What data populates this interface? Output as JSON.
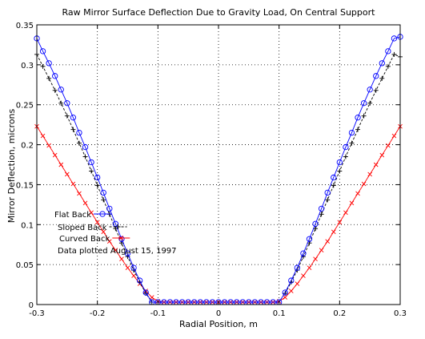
{
  "chart_data": {
    "type": "line",
    "title": "Raw Mirror Surface Deflection Due to Gravity Load, On Central Support",
    "xlabel": "Radial Position, m",
    "ylabel": "Mirror Deflection, microns",
    "xlim": [
      -0.3,
      0.3
    ],
    "ylim": [
      0,
      0.35
    ],
    "xticks": [
      -0.3,
      -0.2,
      -0.1,
      0,
      0.1,
      0.2,
      0.3
    ],
    "xtick_labels": [
      "-0.3",
      "-0.2",
      "-0.1",
      "0",
      "0.1",
      "0.2",
      "0.3"
    ],
    "yticks": [
      0,
      0.05,
      0.1,
      0.15,
      0.2,
      0.25,
      0.3,
      0.35
    ],
    "ytick_labels": [
      "0",
      "0.05",
      "0.1",
      "0.15",
      "0.2",
      "0.25",
      "0.3",
      "0.35"
    ],
    "grid": true,
    "legend_position": "left",
    "annotation": "Data plotted August 15, 1997",
    "series": [
      {
        "name": "Flat Back",
        "color": "#0000ff",
        "marker": "o",
        "points": [
          [
            -0.3,
            0.333
          ],
          [
            -0.29,
            0.317
          ],
          [
            -0.28,
            0.302
          ],
          [
            -0.27,
            0.286
          ],
          [
            -0.26,
            0.269
          ],
          [
            -0.25,
            0.252
          ],
          [
            -0.24,
            0.234
          ],
          [
            -0.23,
            0.215
          ],
          [
            -0.22,
            0.197
          ],
          [
            -0.21,
            0.178
          ],
          [
            -0.2,
            0.159
          ],
          [
            -0.19,
            0.14
          ],
          [
            -0.18,
            0.12
          ],
          [
            -0.17,
            0.101
          ],
          [
            -0.16,
            0.082
          ],
          [
            -0.15,
            0.064
          ],
          [
            -0.14,
            0.046
          ],
          [
            -0.13,
            0.03
          ],
          [
            -0.12,
            0.015
          ],
          [
            -0.11,
            0.003
          ],
          [
            -0.1,
            0.003
          ],
          [
            -0.09,
            0.003
          ],
          [
            -0.08,
            0.003
          ],
          [
            -0.07,
            0.003
          ],
          [
            -0.06,
            0.003
          ],
          [
            -0.05,
            0.003
          ],
          [
            -0.04,
            0.003
          ],
          [
            -0.03,
            0.003
          ],
          [
            -0.02,
            0.003
          ],
          [
            -0.01,
            0.003
          ],
          [
            0,
            0.003
          ],
          [
            0.01,
            0.003
          ],
          [
            0.02,
            0.003
          ],
          [
            0.03,
            0.003
          ],
          [
            0.04,
            0.003
          ],
          [
            0.05,
            0.003
          ],
          [
            0.06,
            0.003
          ],
          [
            0.07,
            0.003
          ],
          [
            0.08,
            0.003
          ],
          [
            0.09,
            0.003
          ],
          [
            0.1,
            0.003
          ],
          [
            0.11,
            0.015
          ],
          [
            0.12,
            0.03
          ],
          [
            0.13,
            0.046
          ],
          [
            0.14,
            0.064
          ],
          [
            0.15,
            0.082
          ],
          [
            0.16,
            0.101
          ],
          [
            0.17,
            0.12
          ],
          [
            0.18,
            0.14
          ],
          [
            0.19,
            0.159
          ],
          [
            0.2,
            0.178
          ],
          [
            0.21,
            0.197
          ],
          [
            0.22,
            0.215
          ],
          [
            0.23,
            0.234
          ],
          [
            0.24,
            0.252
          ],
          [
            0.25,
            0.269
          ],
          [
            0.26,
            0.286
          ],
          [
            0.27,
            0.302
          ],
          [
            0.28,
            0.317
          ],
          [
            0.29,
            0.333
          ],
          [
            0.3,
            0.335
          ]
        ]
      },
      {
        "name": "Sloped Back",
        "color": "#000000",
        "marker": "+",
        "points": [
          [
            -0.3,
            0.313
          ],
          [
            -0.29,
            0.298
          ],
          [
            -0.28,
            0.283
          ],
          [
            -0.27,
            0.268
          ],
          [
            -0.26,
            0.252
          ],
          [
            -0.25,
            0.236
          ],
          [
            -0.24,
            0.219
          ],
          [
            -0.23,
            0.202
          ],
          [
            -0.22,
            0.185
          ],
          [
            -0.21,
            0.167
          ],
          [
            -0.2,
            0.149
          ],
          [
            -0.19,
            0.131
          ],
          [
            -0.18,
            0.113
          ],
          [
            -0.17,
            0.095
          ],
          [
            -0.16,
            0.077
          ],
          [
            -0.15,
            0.06
          ],
          [
            -0.14,
            0.043
          ],
          [
            -0.13,
            0.028
          ],
          [
            -0.12,
            0.014
          ],
          [
            -0.11,
            0.003
          ],
          [
            0.11,
            0.014
          ],
          [
            0.12,
            0.028
          ],
          [
            0.13,
            0.043
          ],
          [
            0.14,
            0.06
          ],
          [
            0.15,
            0.077
          ],
          [
            0.16,
            0.095
          ],
          [
            0.17,
            0.113
          ],
          [
            0.18,
            0.131
          ],
          [
            0.19,
            0.149
          ],
          [
            0.2,
            0.167
          ],
          [
            0.21,
            0.185
          ],
          [
            0.22,
            0.202
          ],
          [
            0.23,
            0.219
          ],
          [
            0.24,
            0.236
          ],
          [
            0.25,
            0.252
          ],
          [
            0.26,
            0.268
          ],
          [
            0.27,
            0.283
          ],
          [
            0.28,
            0.298
          ],
          [
            0.29,
            0.313
          ],
          [
            0.3,
            0.31
          ]
        ]
      },
      {
        "name": "Curved Back",
        "color": "#ff0000",
        "marker": "x",
        "points": [
          [
            -0.3,
            0.223
          ],
          [
            -0.29,
            0.211
          ],
          [
            -0.28,
            0.199
          ],
          [
            -0.27,
            0.187
          ],
          [
            -0.26,
            0.175
          ],
          [
            -0.25,
            0.163
          ],
          [
            -0.24,
            0.151
          ],
          [
            -0.23,
            0.139
          ],
          [
            -0.22,
            0.127
          ],
          [
            -0.21,
            0.115
          ],
          [
            -0.2,
            0.103
          ],
          [
            -0.19,
            0.091
          ],
          [
            -0.18,
            0.079
          ],
          [
            -0.17,
            0.068
          ],
          [
            -0.16,
            0.057
          ],
          [
            -0.15,
            0.046
          ],
          [
            -0.14,
            0.036
          ],
          [
            -0.13,
            0.026
          ],
          [
            -0.12,
            0.017
          ],
          [
            -0.11,
            0.009
          ],
          [
            -0.1,
            0.004
          ],
          [
            -0.09,
            0.003
          ],
          [
            -0.08,
            0.003
          ],
          [
            -0.07,
            0.003
          ],
          [
            -0.06,
            0.003
          ],
          [
            -0.05,
            0.003
          ],
          [
            -0.04,
            0.003
          ],
          [
            -0.03,
            0.003
          ],
          [
            -0.02,
            0.003
          ],
          [
            -0.01,
            0.003
          ],
          [
            0,
            0.003
          ],
          [
            0.01,
            0.003
          ],
          [
            0.02,
            0.003
          ],
          [
            0.03,
            0.003
          ],
          [
            0.04,
            0.003
          ],
          [
            0.05,
            0.003
          ],
          [
            0.06,
            0.003
          ],
          [
            0.07,
            0.003
          ],
          [
            0.08,
            0.003
          ],
          [
            0.09,
            0.003
          ],
          [
            0.1,
            0.004
          ],
          [
            0.11,
            0.009
          ],
          [
            0.12,
            0.017
          ],
          [
            0.13,
            0.026
          ],
          [
            0.14,
            0.036
          ],
          [
            0.15,
            0.046
          ],
          [
            0.16,
            0.057
          ],
          [
            0.17,
            0.068
          ],
          [
            0.18,
            0.079
          ],
          [
            0.19,
            0.091
          ],
          [
            0.2,
            0.103
          ],
          [
            0.21,
            0.115
          ],
          [
            0.22,
            0.127
          ],
          [
            0.23,
            0.139
          ],
          [
            0.24,
            0.151
          ],
          [
            0.25,
            0.163
          ],
          [
            0.26,
            0.175
          ],
          [
            0.27,
            0.187
          ],
          [
            0.28,
            0.199
          ],
          [
            0.29,
            0.211
          ],
          [
            0.3,
            0.223
          ]
        ]
      }
    ]
  }
}
